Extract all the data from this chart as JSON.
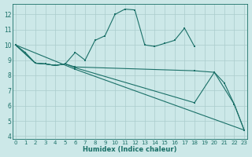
{
  "xlabel": "Humidex (Indice chaleur)",
  "bg_color": "#cce8e8",
  "grid_color": "#aacccc",
  "line_color": "#1a7068",
  "xlim": [
    -0.3,
    23.3
  ],
  "ylim": [
    3.8,
    12.7
  ],
  "xticks": [
    0,
    1,
    2,
    3,
    4,
    5,
    6,
    7,
    8,
    9,
    10,
    11,
    12,
    13,
    14,
    15,
    16,
    17,
    18,
    19,
    20,
    21,
    22,
    23
  ],
  "yticks": [
    4,
    5,
    6,
    7,
    8,
    9,
    10,
    11,
    12
  ],
  "curve1_x": [
    0,
    1,
    2,
    3,
    4,
    5,
    6,
    7,
    8,
    9,
    10,
    11,
    12,
    13,
    14,
    15,
    16,
    17,
    18
  ],
  "curve1_y": [
    10.0,
    9.5,
    8.8,
    8.75,
    8.65,
    8.75,
    9.5,
    9.0,
    10.3,
    10.6,
    12.0,
    12.35,
    12.3,
    10.0,
    9.9,
    10.1,
    10.3,
    11.1,
    9.9
  ],
  "curve2_x": [
    0,
    2,
    3,
    4,
    5,
    6,
    18,
    20,
    21,
    22,
    23
  ],
  "curve2_y": [
    10.0,
    8.8,
    8.75,
    8.65,
    8.75,
    8.55,
    8.3,
    8.2,
    7.5,
    6.1,
    4.4
  ],
  "curve3_x": [
    0,
    2,
    3,
    4,
    5,
    6,
    18,
    20,
    22,
    23
  ],
  "curve3_y": [
    10.0,
    8.8,
    8.75,
    8.65,
    8.75,
    8.5,
    6.2,
    8.2,
    6.1,
    4.4
  ],
  "curve4_x": [
    0,
    6,
    23
  ],
  "curve4_y": [
    10.0,
    8.4,
    4.4
  ]
}
